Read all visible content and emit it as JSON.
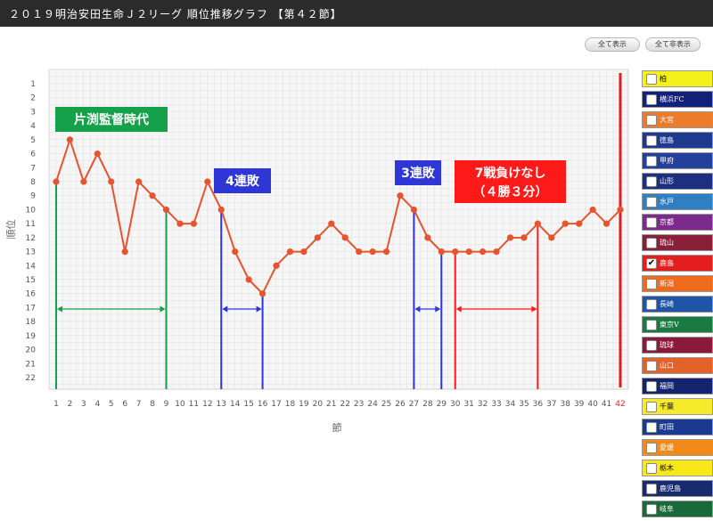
{
  "header": {
    "title": "２０１９明治安田生命Ｊ２リーグ 順位推移グラフ 【第４２節】"
  },
  "buttons": {
    "show_all": "全て表示",
    "hide_all": "全て非表示"
  },
  "chart_data": {
    "type": "line",
    "xlabel": "節",
    "ylabel": "順位",
    "x": [
      1,
      2,
      3,
      4,
      5,
      6,
      7,
      8,
      9,
      10,
      11,
      12,
      13,
      14,
      15,
      16,
      17,
      18,
      19,
      20,
      21,
      22,
      23,
      24,
      25,
      26,
      27,
      28,
      29,
      30,
      31,
      32,
      33,
      34,
      35,
      36,
      37,
      38,
      39,
      40,
      41,
      42
    ],
    "xlim": [
      1,
      42
    ],
    "ylim": [
      1,
      22
    ],
    "y_inverted": true,
    "grid": true,
    "highlight_x": 42,
    "series": [
      {
        "name": "鹿島",
        "color": "#e8532d",
        "values": [
          8,
          5,
          8,
          6,
          8,
          13,
          8,
          9,
          10,
          11,
          11,
          8,
          10,
          13,
          15,
          16,
          14,
          13,
          13,
          12,
          11,
          12,
          13,
          13,
          13,
          9,
          10,
          12,
          13,
          13,
          13,
          13,
          13,
          12,
          12,
          11,
          12,
          11,
          11,
          10,
          11,
          10
        ]
      }
    ],
    "annotations": [
      {
        "text": "片渕監督時代",
        "color": "#14a14a",
        "x_start": 1,
        "x_end": 9
      },
      {
        "text": "4連敗",
        "color": "#2f36d6",
        "x_start": 13,
        "x_end": 16
      },
      {
        "text": "3連敗",
        "color": "#2f36d6",
        "x_start": 27,
        "x_end": 29
      },
      {
        "text": "7戦負けなし",
        "text2": "（４勝３分）",
        "color": "#ff1a1a",
        "x_start": 30,
        "x_end": 36
      }
    ]
  },
  "legend": [
    {
      "label": "柏",
      "color": "#f5f019",
      "text_color": "#000000",
      "checked": false
    },
    {
      "label": "横浜FC",
      "color": "#13207a",
      "text_color": "#ffffff",
      "checked": false
    },
    {
      "label": "大宮",
      "color": "#ee7a2c",
      "text_color": "#ffffff",
      "checked": false
    },
    {
      "label": "徳島",
      "color": "#1e3a8f",
      "text_color": "#ffffff",
      "checked": false
    },
    {
      "label": "甲府",
      "color": "#24409a",
      "text_color": "#ffffff",
      "checked": false
    },
    {
      "label": "山形",
      "color": "#1c2f80",
      "text_color": "#ffffff",
      "checked": false
    },
    {
      "label": "水戸",
      "color": "#2f7fc4",
      "text_color": "#ffffff",
      "checked": false
    },
    {
      "label": "京都",
      "color": "#7b2a8e",
      "text_color": "#ffffff",
      "checked": false
    },
    {
      "label": "琉山",
      "color": "#8a1f3a",
      "text_color": "#ffffff",
      "checked": false
    },
    {
      "label": "鹿島",
      "color": "#e41e1e",
      "text_color": "#ffffff",
      "checked": true
    },
    {
      "label": "新潟",
      "color": "#ee6a1c",
      "text_color": "#ffffff",
      "checked": false
    },
    {
      "label": "長崎",
      "color": "#1e55a5",
      "text_color": "#ffffff",
      "checked": false
    },
    {
      "label": "東京V",
      "color": "#1a7a42",
      "text_color": "#ffffff",
      "checked": false
    },
    {
      "label": "琉球",
      "color": "#8a1a3a",
      "text_color": "#ffffff",
      "checked": false
    },
    {
      "label": "山口",
      "color": "#e2622a",
      "text_color": "#ffffff",
      "checked": false
    },
    {
      "label": "福岡",
      "color": "#14246e",
      "text_color": "#ffffff",
      "checked": false
    },
    {
      "label": "千葉",
      "color": "#f5ea2b",
      "text_color": "#000000",
      "checked": false
    },
    {
      "label": "町田",
      "color": "#1a3a90",
      "text_color": "#ffffff",
      "checked": false
    },
    {
      "label": "愛媛",
      "color": "#f28a1a",
      "text_color": "#ffffff",
      "checked": false
    },
    {
      "label": "栃木",
      "color": "#f8e81a",
      "text_color": "#000000",
      "checked": false
    },
    {
      "label": "鹿児島",
      "color": "#1a2a6e",
      "text_color": "#ffffff",
      "checked": false
    },
    {
      "label": "岐阜",
      "color": "#186a3a",
      "text_color": "#ffffff",
      "checked": false
    }
  ]
}
